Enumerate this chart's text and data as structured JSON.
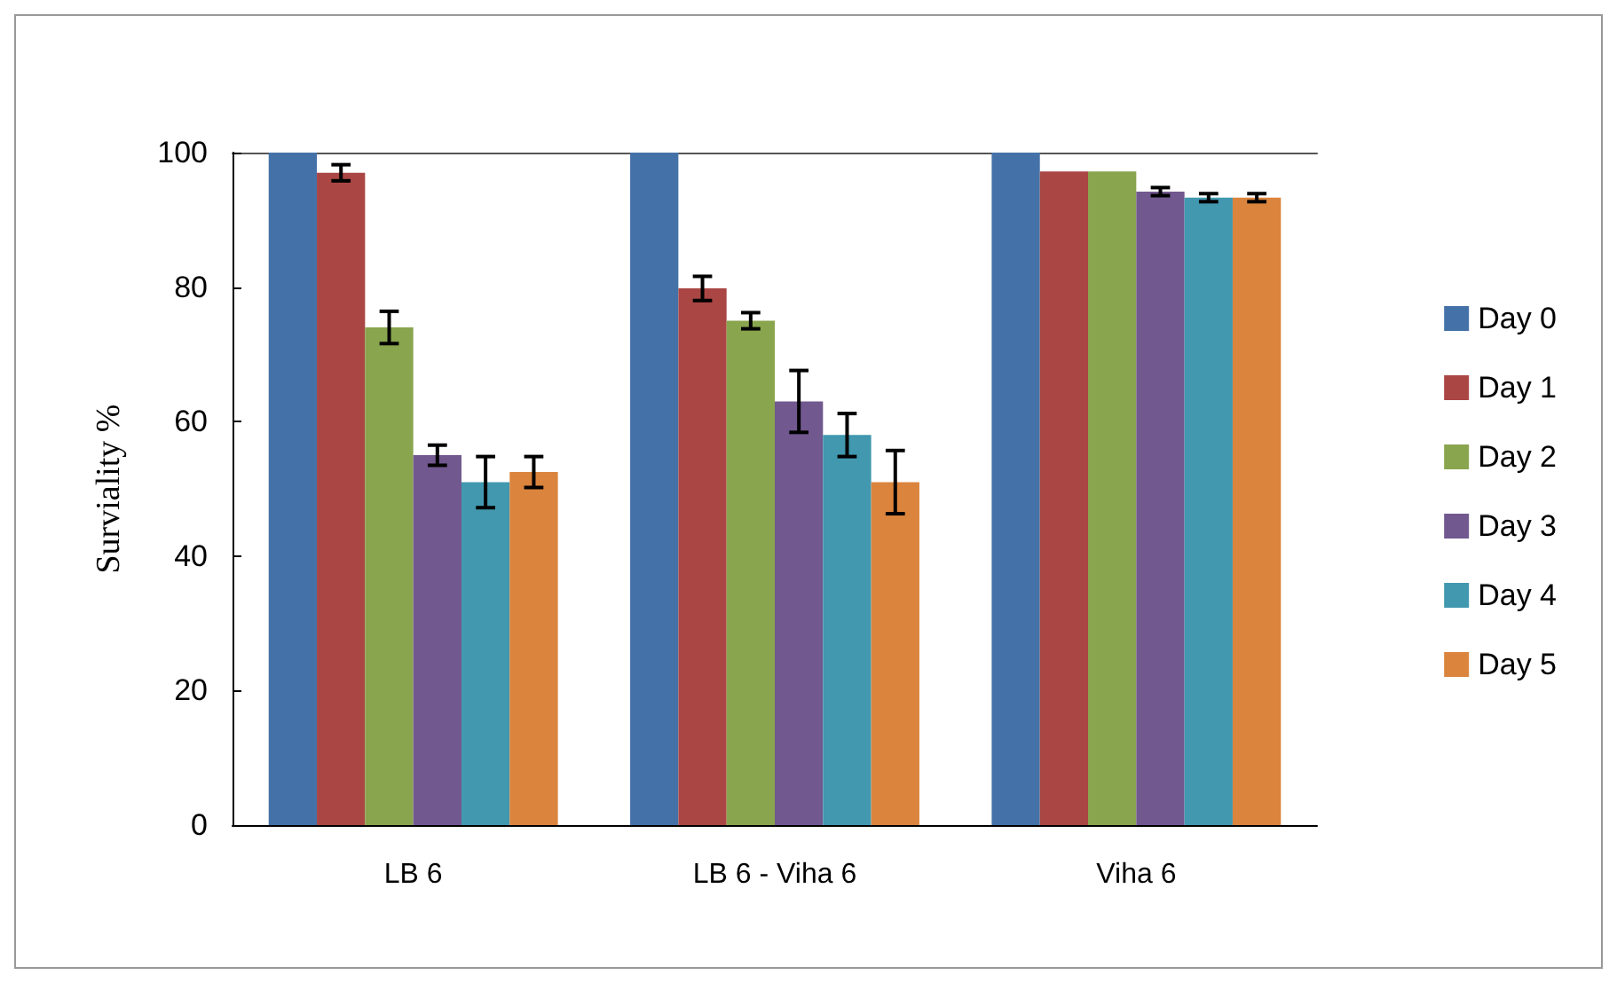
{
  "chart_data": {
    "type": "bar",
    "ylabel": "Surviality %",
    "categories": [
      "LB 6",
      "LB 6 - Viha 6",
      "Viha 6"
    ],
    "ylim": [
      0,
      100
    ],
    "yticks": [
      0,
      20,
      40,
      60,
      80,
      100
    ],
    "grid": false,
    "legend": "right",
    "series": [
      {
        "name": "Day 0",
        "color": "#4472a8",
        "values": [
          100,
          100,
          100
        ]
      },
      {
        "name": "Day 1",
        "color": "#aa4644",
        "values": [
          97,
          79.8,
          97.2
        ],
        "errors": [
          1.2,
          1.8,
          null
        ]
      },
      {
        "name": "Day 2",
        "color": "#89a54e",
        "values": [
          74,
          75,
          97.2
        ],
        "errors": [
          2.4,
          1.2,
          null
        ]
      },
      {
        "name": "Day 3",
        "color": "#71588f",
        "values": [
          55,
          63,
          94.2
        ],
        "errors": [
          1.5,
          4.6,
          0.6
        ]
      },
      {
        "name": "Day 4",
        "color": "#4198af",
        "values": [
          51,
          58,
          93.3
        ],
        "errors": [
          3.8,
          3.2,
          0.6
        ]
      },
      {
        "name": "Day 5",
        "color": "#db843d",
        "values": [
          52.5,
          51,
          93.3
        ],
        "errors": [
          2.3,
          4.7,
          0.6
        ]
      }
    ]
  }
}
